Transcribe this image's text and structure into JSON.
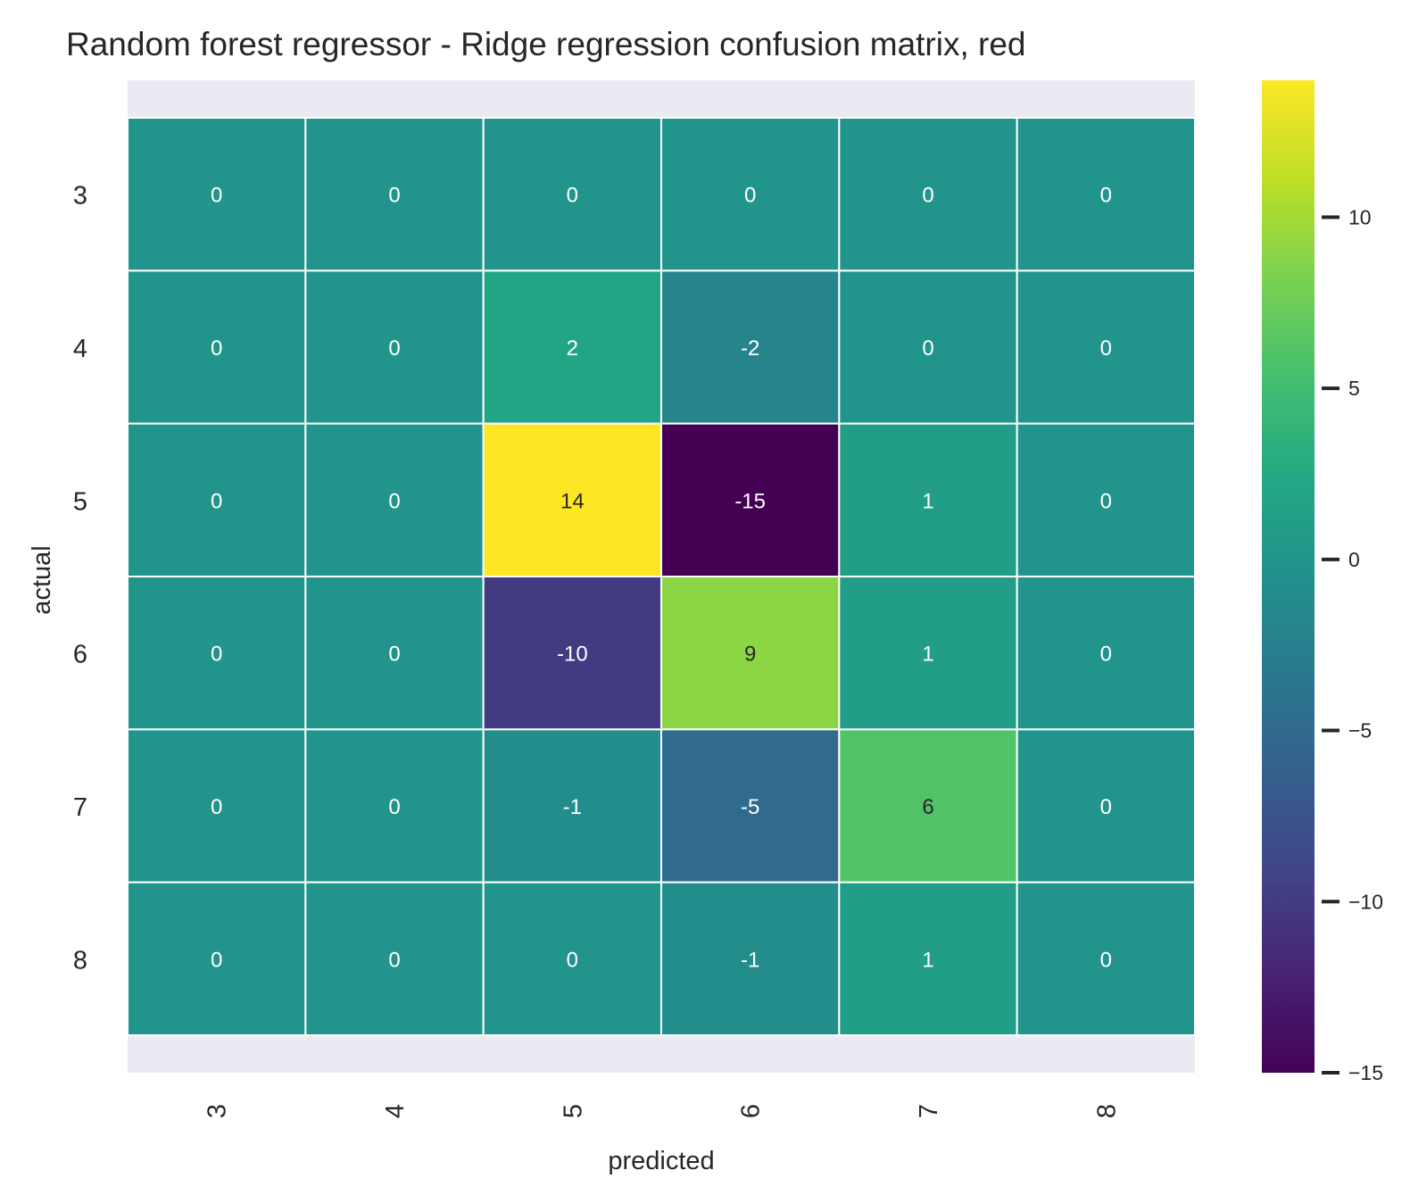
{
  "chart_data": {
    "type": "heatmap",
    "title": "Random forest regressor - Ridge regression confusion matrix, red",
    "xlabel": "predicted",
    "ylabel": "actual",
    "x_categories": [
      "3",
      "4",
      "5",
      "6",
      "7",
      "8"
    ],
    "y_categories": [
      "3",
      "4",
      "5",
      "6",
      "7",
      "8"
    ],
    "values": [
      [
        0,
        0,
        0,
        0,
        0,
        0
      ],
      [
        0,
        0,
        2,
        -2,
        0,
        0
      ],
      [
        0,
        0,
        14,
        -15,
        1,
        0
      ],
      [
        0,
        0,
        -10,
        9,
        1,
        0
      ],
      [
        0,
        0,
        -1,
        -5,
        6,
        0
      ],
      [
        0,
        0,
        0,
        -1,
        1,
        0
      ]
    ],
    "colormap": "viridis",
    "vmin": -15,
    "vmax": 14,
    "colorbar": {
      "ticks": [
        10,
        5,
        0,
        -5,
        -10,
        -15
      ],
      "tick_labels": [
        "10",
        "5",
        "0",
        "−5",
        "−10",
        "−15"
      ],
      "placement": "right"
    },
    "background_color": "#eaeaf2",
    "cell_border_color": "#ffffff",
    "annotation_dark_color": "#262626",
    "annotation_light_color": "#ffffff"
  }
}
